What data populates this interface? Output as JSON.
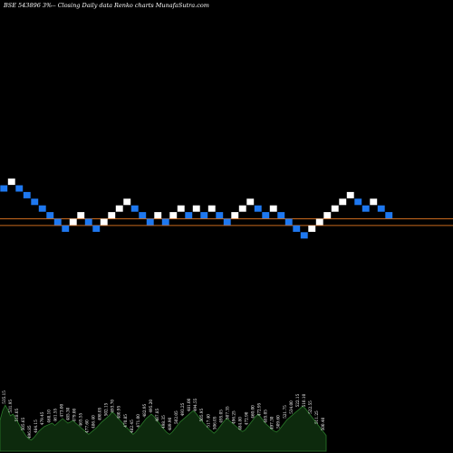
{
  "chart_data": {
    "type": "renko",
    "title": "BSE 543896  3%-- Closing Daily data  Renko  charts MunafaSutra.com",
    "colors": {
      "background": "#000000",
      "up_brick": "#ffffff",
      "down_brick": "#1e78f0",
      "reference_line": "#c8691e",
      "volume_fill": "#0d2a0d",
      "volume_edge": "#2a7a2a",
      "label": "#ffffff"
    },
    "brick_direction": [
      "down",
      "up",
      "down",
      "down",
      "down",
      "down",
      "down",
      "down",
      "down",
      "up",
      "up",
      "down",
      "down",
      "up",
      "up",
      "up",
      "up",
      "down",
      "down",
      "down",
      "up",
      "down",
      "up",
      "up",
      "down",
      "up",
      "down",
      "up",
      "down",
      "down",
      "up",
      "up",
      "up",
      "down",
      "down",
      "up",
      "down",
      "down",
      "down",
      "down",
      "up",
      "up",
      "up",
      "up",
      "up",
      "up",
      "down",
      "down",
      "up",
      "down",
      "down"
    ],
    "brick_level": [
      2,
      3,
      2,
      1,
      0,
      -1,
      -2,
      -3,
      -4,
      -3,
      -2,
      -3,
      -4,
      -3,
      -2,
      -1,
      0,
      -1,
      -2,
      -3,
      -2,
      -3,
      -2,
      -1,
      -2,
      -1,
      -2,
      -1,
      -2,
      -3,
      -2,
      -1,
      0,
      -1,
      -2,
      -1,
      -2,
      -3,
      -4,
      -5,
      -4,
      -3,
      -2,
      -1,
      0,
      1,
      0,
      -1,
      0,
      -1,
      -2
    ],
    "reference_lines": [
      -2.5,
      -3.5
    ],
    "volume_levels": [
      0.55,
      0.72,
      0.82,
      0.74,
      0.63,
      0.66,
      0.58,
      0.5,
      0.42,
      0.34,
      0.27,
      0.22,
      0.2,
      0.24,
      0.3,
      0.36,
      0.4,
      0.44,
      0.46,
      0.48,
      0.5,
      0.46,
      0.5,
      0.54,
      0.58,
      0.54,
      0.5,
      0.52,
      0.55,
      0.5,
      0.46,
      0.42,
      0.38,
      0.34,
      0.3,
      0.34,
      0.38,
      0.42,
      0.47,
      0.52,
      0.56,
      0.6,
      0.64,
      0.7,
      0.66,
      0.6,
      0.55,
      0.5,
      0.44,
      0.4,
      0.35,
      0.3,
      0.34,
      0.4,
      0.46,
      0.52,
      0.58,
      0.62,
      0.66,
      0.62,
      0.56,
      0.5,
      0.44,
      0.38,
      0.33,
      0.3,
      0.34,
      0.4,
      0.46,
      0.52,
      0.56,
      0.6,
      0.64,
      0.68,
      0.72,
      0.68,
      0.62,
      0.56,
      0.5,
      0.45,
      0.4,
      0.36,
      0.32,
      0.36,
      0.42,
      0.48,
      0.54,
      0.58,
      0.54,
      0.5,
      0.46,
      0.42,
      0.38,
      0.35,
      0.38,
      0.44,
      0.5,
      0.56,
      0.62,
      0.66,
      0.6,
      0.54,
      0.48,
      0.44,
      0.4,
      0.36,
      0.34,
      0.38,
      0.44,
      0.5,
      0.56,
      0.6,
      0.64,
      0.68,
      0.72,
      0.76,
      0.8,
      0.76,
      0.7,
      0.64,
      0.58,
      0.52,
      0.46,
      0.4,
      0.34,
      0.28
    ],
    "volume_labels": [
      "535.15",
      "531.95",
      "518.05",
      "505.65",
      "496.85",
      "484.15",
      "479.45",
      "468.10",
      "461.55",
      "473.00",
      "485.30",
      "479.00",
      "465.55",
      "477.60",
      "486.40",
      "498.05",
      "502.15",
      "493.70",
      "480.95",
      "470.85",
      "482.45",
      "471.00",
      "482.95",
      "495.20",
      "487.85",
      "498.35",
      "489.90",
      "502.05",
      "493.25",
      "481.00",
      "494.55",
      "505.95",
      "517.40",
      "506.05",
      "495.05",
      "507.35",
      "496.25",
      "484.80",
      "472.90",
      "460.00",
      "472.95",
      "485.05",
      "497.30",
      "509.60",
      "521.75",
      "534.00",
      "522.15",
      "510.10",
      "522.55",
      "511.25",
      "500.40"
    ]
  }
}
